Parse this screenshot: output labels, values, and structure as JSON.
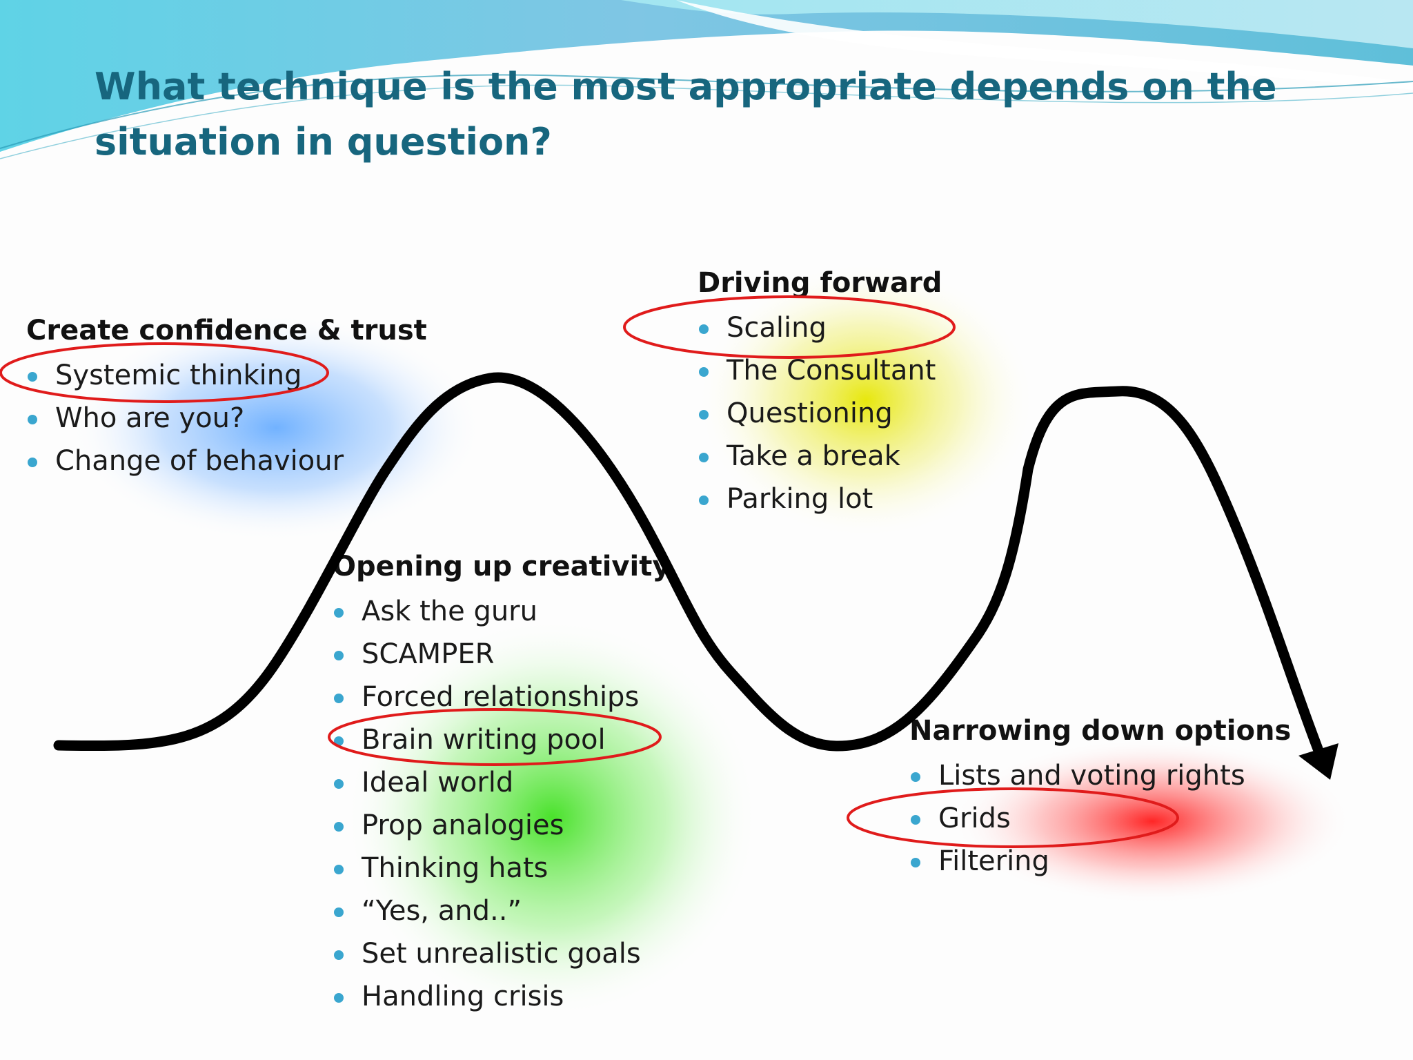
{
  "title": "What technique is the most appropriate depends on the situation in question?",
  "colors": {
    "title": "#17667e",
    "bullet": "#3aa6cf",
    "curve": "#000000",
    "highlight_ring": "#e01b1b",
    "confidence_glow": "#6aaeff",
    "creativity_glow": "#40e020",
    "driving_glow": "#e6e600",
    "narrowing_glow": "#ff1a1a"
  },
  "sections": {
    "confidence": {
      "heading": "Create confidence & trust",
      "items": [
        "Systemic thinking",
        "Who are you?",
        "Change of behaviour"
      ],
      "circled": "Systemic thinking"
    },
    "creativity": {
      "heading": "Opening up creativity",
      "items": [
        "Ask the guru",
        "SCAMPER",
        "Forced relationships",
        "Brain writing pool",
        "Ideal world",
        "Prop analogies",
        "Thinking hats",
        "“Yes, and..”",
        "Set unrealistic goals",
        "Handling crisis"
      ],
      "circled": "Brain writing pool"
    },
    "driving": {
      "heading": "Driving forward",
      "items": [
        "Scaling",
        "The Consultant",
        "Questioning",
        "Take a break",
        "Parking lot"
      ],
      "circled": "Scaling"
    },
    "narrowing": {
      "heading": "Narrowing down options",
      "items": [
        "Lists and voting rights",
        "Grids",
        "Filtering"
      ],
      "circled": "Grids"
    }
  }
}
